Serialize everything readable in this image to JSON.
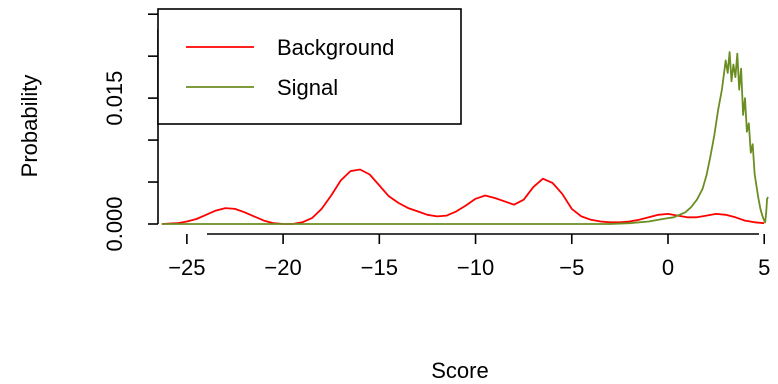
{
  "chart_data": {
    "type": "line",
    "xlabel": "Score",
    "ylabel": "Probability",
    "xlim": [
      -26.5,
      5.3
    ],
    "ylim": [
      0,
      0.0255
    ],
    "x_ticks": [
      -25,
      -20,
      -15,
      -10,
      -5,
      0,
      5
    ],
    "x_tick_labels": [
      "−25",
      "−20",
      "−15",
      "−10",
      "−5",
      "0",
      "5"
    ],
    "y_ticks": [
      0.0,
      0.005,
      0.01,
      0.015,
      0.02,
      0.025
    ],
    "y_tick_labels": [
      "0.000",
      "",
      "",
      "0.015",
      "",
      ""
    ],
    "legend_position": "top-left",
    "series": [
      {
        "name": "Background",
        "color": "#ff0000",
        "points": [
          [
            -26.3,
            0.0
          ],
          [
            -25.5,
            0.0001
          ],
          [
            -25.0,
            0.0003
          ],
          [
            -24.5,
            0.0006
          ],
          [
            -24.0,
            0.0011
          ],
          [
            -23.5,
            0.0016
          ],
          [
            -23.0,
            0.0019
          ],
          [
            -22.5,
            0.0018
          ],
          [
            -22.0,
            0.0014
          ],
          [
            -21.5,
            0.0009
          ],
          [
            -21.0,
            0.0004
          ],
          [
            -20.5,
            0.0001
          ],
          [
            -20.0,
            0.0
          ],
          [
            -19.5,
            0.0
          ],
          [
            -19.0,
            0.0002
          ],
          [
            -18.5,
            0.0007
          ],
          [
            -18.0,
            0.0018
          ],
          [
            -17.5,
            0.0034
          ],
          [
            -17.0,
            0.0052
          ],
          [
            -16.5,
            0.0063
          ],
          [
            -16.0,
            0.0065
          ],
          [
            -15.5,
            0.0059
          ],
          [
            -15.0,
            0.0046
          ],
          [
            -14.5,
            0.0033
          ],
          [
            -14.0,
            0.0025
          ],
          [
            -13.5,
            0.0019
          ],
          [
            -13.0,
            0.0015
          ],
          [
            -12.5,
            0.0011
          ],
          [
            -12.0,
            0.0009
          ],
          [
            -11.5,
            0.001
          ],
          [
            -11.0,
            0.0015
          ],
          [
            -10.5,
            0.0022
          ],
          [
            -10.0,
            0.003
          ],
          [
            -9.5,
            0.0034
          ],
          [
            -9.0,
            0.0031
          ],
          [
            -8.5,
            0.0027
          ],
          [
            -8.0,
            0.0023
          ],
          [
            -7.5,
            0.0029
          ],
          [
            -7.0,
            0.0044
          ],
          [
            -6.5,
            0.0054
          ],
          [
            -6.0,
            0.0049
          ],
          [
            -5.5,
            0.0036
          ],
          [
            -5.0,
            0.0018
          ],
          [
            -4.5,
            0.0009
          ],
          [
            -4.0,
            0.0005
          ],
          [
            -3.5,
            0.0003
          ],
          [
            -3.0,
            0.0002
          ],
          [
            -2.5,
            0.0002
          ],
          [
            -2.0,
            0.0003
          ],
          [
            -1.5,
            0.0005
          ],
          [
            -1.0,
            0.0008
          ],
          [
            -0.5,
            0.0011
          ],
          [
            0.0,
            0.0012
          ],
          [
            0.5,
            0.001
          ],
          [
            1.0,
            0.0008
          ],
          [
            1.5,
            0.0008
          ],
          [
            2.0,
            0.001
          ],
          [
            2.5,
            0.0012
          ],
          [
            3.0,
            0.0011
          ],
          [
            3.5,
            0.0008
          ],
          [
            4.0,
            0.0004
          ],
          [
            4.5,
            0.0002
          ],
          [
            5.0,
            0.0001
          ]
        ]
      },
      {
        "name": "Signal",
        "color": "#6b8e23",
        "points": [
          [
            -26.3,
            0.0
          ],
          [
            -20.0,
            0.0
          ],
          [
            -10.0,
            0.0
          ],
          [
            -5.0,
            0.0
          ],
          [
            -3.0,
            0.0
          ],
          [
            -2.0,
            0.0001
          ],
          [
            -1.0,
            0.0003
          ],
          [
            -0.5,
            0.0005
          ],
          [
            0.0,
            0.0007
          ],
          [
            0.3,
            0.0008
          ],
          [
            0.6,
            0.0011
          ],
          [
            0.9,
            0.0014
          ],
          [
            1.2,
            0.002
          ],
          [
            1.5,
            0.0029
          ],
          [
            1.8,
            0.0042
          ],
          [
            2.0,
            0.0058
          ],
          [
            2.2,
            0.008
          ],
          [
            2.4,
            0.0105
          ],
          [
            2.6,
            0.0135
          ],
          [
            2.8,
            0.016
          ],
          [
            3.0,
            0.0195
          ],
          [
            3.1,
            0.018
          ],
          [
            3.2,
            0.0205
          ],
          [
            3.3,
            0.017
          ],
          [
            3.4,
            0.019
          ],
          [
            3.5,
            0.0175
          ],
          [
            3.6,
            0.0203
          ],
          [
            3.7,
            0.016
          ],
          [
            3.8,
            0.0185
          ],
          [
            3.9,
            0.013
          ],
          [
            4.0,
            0.015
          ],
          [
            4.1,
            0.011
          ],
          [
            4.2,
            0.012
          ],
          [
            4.3,
            0.0085
          ],
          [
            4.4,
            0.0095
          ],
          [
            4.5,
            0.006
          ],
          [
            4.6,
            0.0045
          ],
          [
            4.7,
            0.003
          ],
          [
            4.8,
            0.0018
          ],
          [
            4.9,
            0.001
          ],
          [
            5.0,
            0.0004
          ],
          [
            5.05,
            0.0002
          ],
          [
            5.1,
            0.0014
          ],
          [
            5.15,
            0.003
          ],
          [
            5.2,
            0.0032
          ]
        ]
      }
    ]
  }
}
